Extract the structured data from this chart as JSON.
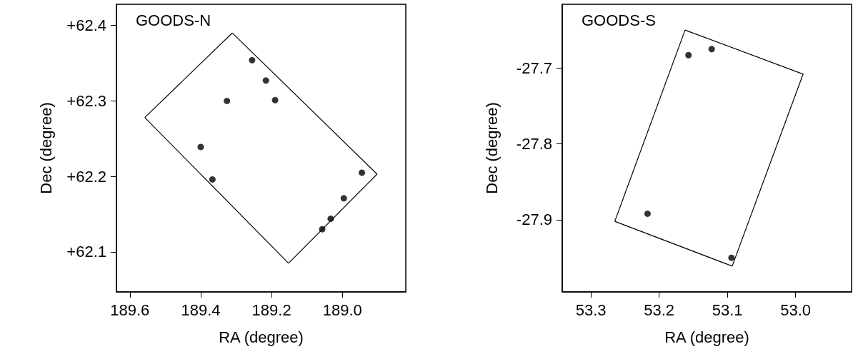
{
  "chart_data": [
    {
      "type": "scatter",
      "title": "GOODS-N",
      "xlabel": "RA (degree)",
      "ylabel": "Dec (degree)",
      "xlim": [
        189.638,
        188.821
      ],
      "ylim": [
        62.047,
        62.428
      ],
      "xticks": [
        189.6,
        189.4,
        189.2,
        {
          "value": 189.0,
          "label": "189.0"
        }
      ],
      "yticks": [
        {
          "value": 62.1,
          "label": "+62.1"
        },
        {
          "value": 62.2,
          "label": "+62.2"
        },
        {
          "value": 62.3,
          "label": "+62.3"
        },
        {
          "value": 62.4,
          "label": "+62.4"
        }
      ],
      "marker": "circle",
      "grid": false,
      "series": [
        {
          "type": "line",
          "marker": "none",
          "color": "#000000",
          "x": [
            189.311,
            188.902
          ],
          "values": [
            62.39,
            62.203
          ]
        },
        {
          "type": "line",
          "marker": "none",
          "color": "#000000",
          "x": [
            189.152,
            188.902
          ],
          "values": [
            62.085,
            62.203
          ]
        },
        {
          "type": "line",
          "marker": "none",
          "color": "#000000",
          "x": [
            189.558,
            189.152
          ],
          "values": [
            62.278,
            62.085
          ]
        },
        {
          "type": "line",
          "marker": "none",
          "color": "#000000",
          "x": [
            189.558,
            189.311
          ],
          "values": [
            62.278,
            62.39
          ]
        },
        {
          "color": "#000000",
          "x": [
            189.255,
            189.216,
            189.326,
            189.19,
            189.4,
            189.367,
            188.945,
            188.996,
            189.033,
            189.057
          ],
          "values": [
            62.354,
            62.327,
            62.3,
            62.301,
            62.239,
            62.196,
            62.205,
            62.171,
            62.144,
            62.13
          ]
        }
      ]
    },
    {
      "type": "scatter",
      "title": "GOODS-S",
      "xlabel": "RA (degree)",
      "ylabel": "Dec (degree)",
      "xlim": [
        53.342,
        52.918
      ],
      "ylim": [
        -27.995,
        -27.616
      ],
      "xticks": [
        53.3,
        53.2,
        53.1,
        {
          "value": 53.0,
          "label": "53.0"
        }
      ],
      "yticks": [
        -27.9,
        -27.8,
        -27.7
      ],
      "marker": "circle",
      "grid": false,
      "series": [
        {
          "type": "line",
          "marker": "none",
          "color": "#000000",
          "x": [
            53.162,
            52.989
          ],
          "values": [
            -27.65,
            -27.708
          ]
        },
        {
          "type": "line",
          "marker": "none",
          "color": "#000000",
          "x": [
            53.093,
            52.989
          ],
          "values": [
            -27.961,
            -27.708
          ]
        },
        {
          "type": "line",
          "marker": "none",
          "color": "#000000",
          "x": [
            53.265,
            53.093
          ],
          "values": [
            -27.902,
            -27.961
          ]
        },
        {
          "type": "line",
          "marker": "none",
          "color": "#000000",
          "x": [
            53.265,
            53.162
          ],
          "values": [
            -27.902,
            -27.65
          ]
        },
        {
          "color": "#000000",
          "x": [
            53.157,
            53.123,
            53.217,
            53.094
          ],
          "values": [
            -27.683,
            -27.675,
            -27.892,
            -27.95
          ]
        }
      ]
    }
  ]
}
